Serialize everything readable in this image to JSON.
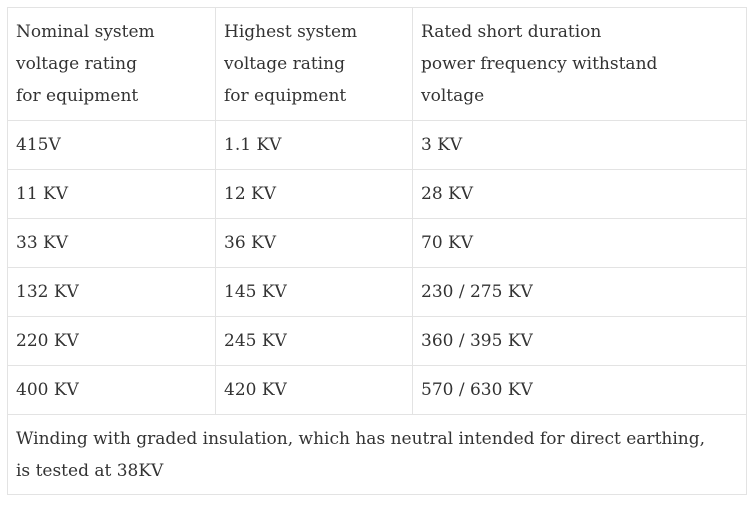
{
  "table": {
    "header": [
      [
        "Nominal system",
        "voltage rating",
        "for equipment"
      ],
      [
        "Highest system",
        "voltage rating",
        "for equipment"
      ],
      [
        "Rated short duration",
        "power frequency withstand",
        "voltage"
      ]
    ],
    "rows": [
      [
        "415V",
        "1.1 KV",
        "3 KV"
      ],
      [
        "11 KV",
        "12 KV",
        "28 KV"
      ],
      [
        "33 KV",
        "36 KV",
        "70 KV"
      ],
      [
        "132 KV",
        "145 KV",
        "230 / 275 KV"
      ],
      [
        "220 KV",
        "245 KV",
        "360 / 395 KV"
      ],
      [
        "400 KV",
        "420 KV",
        "570 / 630 KV"
      ]
    ],
    "note": [
      "Winding with graded insulation, which has neutral intended for direct earthing,",
      "is tested at 38KV"
    ]
  }
}
